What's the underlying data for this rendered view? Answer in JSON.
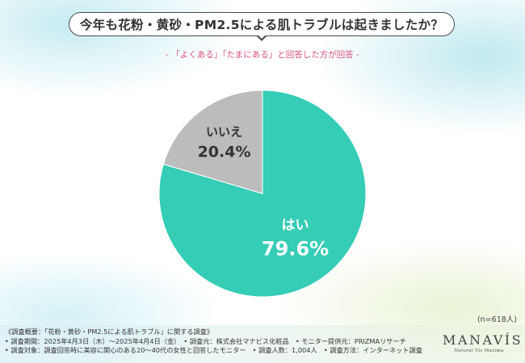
{
  "header": {
    "title": "今年も花粉・黄砂・PM2.5による肌トラブルは起きましたか？",
    "subtitle": "- 「よくある」「たまにある」と回答した方が回答 -"
  },
  "chart_data": {
    "type": "pie",
    "title": "今年も花粉・黄砂・PM2.5による肌トラブルは起きましたか？",
    "slices": [
      {
        "label": "はい",
        "value": 79.6,
        "display": "79.6%",
        "color": "#35cdb6",
        "text_color": "#ffffff"
      },
      {
        "label": "いいえ",
        "value": 20.4,
        "display": "20.4%",
        "color": "#bcbcbc",
        "text_color": "#333333"
      }
    ],
    "sample_size": "(n=618人)"
  },
  "footer": {
    "lines": [
      "《調査概要：「花粉・黄砂・PM2.5による肌トラブル」に関する調査》",
      "• 調査期間：2025年4月3日（木）～2025年4月4日（金）　• 調査元：株式会社マナビス化粧品　• モニター提供元：PRIZMAリサーチ",
      "• 調査対象：調査回答時に美容に関心のある20～40代の女性と回答したモニター　• 調査人数：1,004人　• 調査方法：インターネット調査"
    ]
  },
  "logo": {
    "name": "MANAVÍS",
    "tagline": "Natural Vis Maxima"
  },
  "colors": {
    "yes_slice": "#35cdb6",
    "no_slice": "#bcbcbc",
    "subtitle": "#d9547a",
    "title_text": "#333333"
  }
}
